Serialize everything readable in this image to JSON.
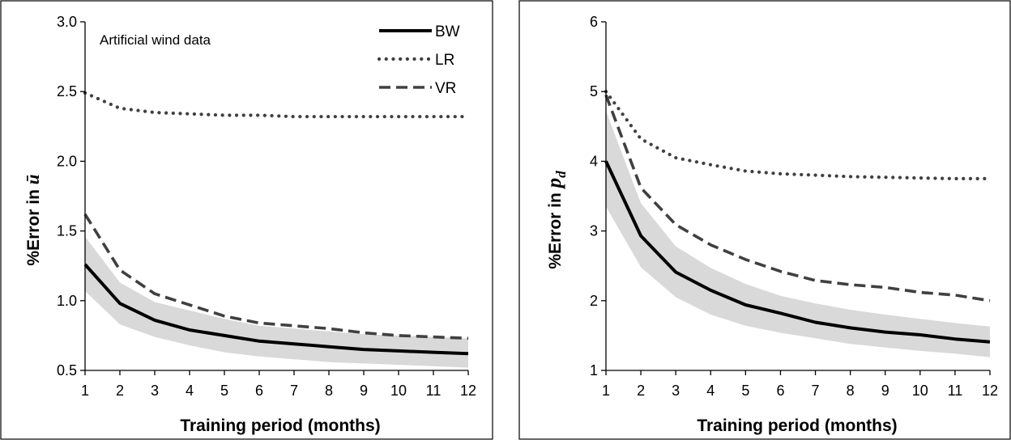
{
  "chart_data": [
    {
      "type": "line",
      "annotation": "Artificial wind data",
      "xlabel": "Training period (months)",
      "ylabel_prefix": "%Error in ",
      "ylabel_symbol": "ū",
      "x": [
        1,
        2,
        3,
        4,
        5,
        6,
        7,
        8,
        9,
        10,
        11,
        12
      ],
      "xlim": [
        1,
        12
      ],
      "ylim": [
        0.5,
        3.0
      ],
      "yticks": [
        0.5,
        1.0,
        1.5,
        2.0,
        2.5,
        3.0
      ],
      "ytick_labels": [
        "0.5",
        "1.0",
        "1.5",
        "2.0",
        "2.5",
        "3.0"
      ],
      "xtick_labels": [
        "1",
        "2",
        "3",
        "4",
        "5",
        "6",
        "7",
        "8",
        "9",
        "10",
        "11",
        "12"
      ],
      "legend_position": "top-right",
      "band": {
        "lower": [
          1.07,
          0.83,
          0.74,
          0.68,
          0.63,
          0.6,
          0.58,
          0.56,
          0.55,
          0.54,
          0.53,
          0.52
        ],
        "upper": [
          1.46,
          1.13,
          0.99,
          0.93,
          0.87,
          0.82,
          0.8,
          0.78,
          0.76,
          0.75,
          0.74,
          0.73
        ],
        "color": "#d9d9d9"
      },
      "series": [
        {
          "name": "BW",
          "style": "solid",
          "color": "#000000",
          "values": [
            1.26,
            0.98,
            0.86,
            0.79,
            0.75,
            0.71,
            0.69,
            0.67,
            0.65,
            0.64,
            0.63,
            0.62
          ]
        },
        {
          "name": "LR",
          "style": "dotted",
          "color": "#404040",
          "values": [
            2.49,
            2.38,
            2.35,
            2.34,
            2.33,
            2.33,
            2.32,
            2.32,
            2.32,
            2.32,
            2.32,
            2.32
          ]
        },
        {
          "name": "VR",
          "style": "dashed",
          "color": "#404040",
          "values": [
            1.62,
            1.22,
            1.05,
            0.97,
            0.89,
            0.84,
            0.82,
            0.8,
            0.77,
            0.75,
            0.74,
            0.73
          ]
        }
      ]
    },
    {
      "type": "line",
      "annotation": "",
      "xlabel": "Training period  (months)",
      "ylabel_prefix": "%Error in ",
      "ylabel_symbol": "p",
      "ylabel_subscript": "d",
      "x": [
        1,
        2,
        3,
        4,
        5,
        6,
        7,
        8,
        9,
        10,
        11,
        12
      ],
      "xlim": [
        1,
        12
      ],
      "ylim": [
        1,
        6
      ],
      "yticks": [
        1,
        2,
        3,
        4,
        5,
        6
      ],
      "ytick_labels": [
        "1",
        "2",
        "3",
        "4",
        "5",
        "6"
      ],
      "xtick_labels": [
        "1",
        "2",
        "3",
        "4",
        "5",
        "6",
        "7",
        "8",
        "9",
        "10",
        "11",
        "12"
      ],
      "band": {
        "lower": [
          3.35,
          2.48,
          2.05,
          1.8,
          1.64,
          1.54,
          1.46,
          1.38,
          1.33,
          1.28,
          1.24,
          1.19
        ],
        "upper": [
          4.72,
          3.4,
          2.78,
          2.47,
          2.24,
          2.07,
          1.96,
          1.87,
          1.8,
          1.74,
          1.68,
          1.63
        ],
        "color": "#d9d9d9"
      },
      "series": [
        {
          "name": "BW",
          "style": "solid",
          "color": "#000000",
          "values": [
            4.0,
            2.93,
            2.41,
            2.15,
            1.94,
            1.82,
            1.69,
            1.61,
            1.55,
            1.51,
            1.45,
            1.41
          ]
        },
        {
          "name": "LR",
          "style": "dotted",
          "color": "#404040",
          "values": [
            5.0,
            4.32,
            4.05,
            3.95,
            3.86,
            3.82,
            3.8,
            3.78,
            3.77,
            3.76,
            3.75,
            3.75
          ]
        },
        {
          "name": "VR",
          "style": "dashed",
          "color": "#404040",
          "values": [
            4.95,
            3.62,
            3.09,
            2.8,
            2.59,
            2.42,
            2.29,
            2.23,
            2.19,
            2.12,
            2.08,
            2.0
          ]
        }
      ]
    }
  ]
}
